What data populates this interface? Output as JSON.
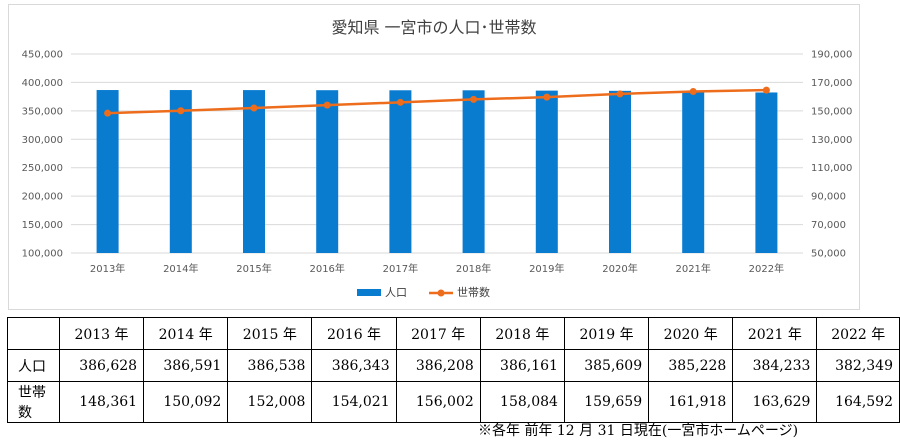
{
  "chart_data": {
    "type": "bar+line",
    "title": "愛知県 一宮市の人口･世帯数",
    "categories": [
      "2013年",
      "2014年",
      "2015年",
      "2016年",
      "2017年",
      "2018年",
      "2019年",
      "2020年",
      "2021年",
      "2022年"
    ],
    "series": [
      {
        "name": "人口",
        "type": "bar",
        "axis": "left",
        "color": "#0a7cd0",
        "values": [
          386628,
          386591,
          386538,
          386343,
          386208,
          386161,
          385609,
          385228,
          384233,
          382349
        ]
      },
      {
        "name": "世帯数",
        "type": "line",
        "axis": "right",
        "color": "#ed6d1c",
        "values": [
          148361,
          150092,
          152008,
          154021,
          156002,
          158084,
          159659,
          161918,
          163629,
          164592
        ]
      }
    ],
    "y_left": {
      "min": 100000,
      "max": 450000,
      "step": 50000,
      "ticks": [
        "100,000",
        "150,000",
        "200,000",
        "250,000",
        "300,000",
        "350,000",
        "400,000",
        "450,000"
      ]
    },
    "y_right": {
      "min": 50000,
      "max": 190000,
      "step": 20000,
      "ticks": [
        "50,000",
        "70,000",
        "90,000",
        "110,000",
        "130,000",
        "150,000",
        "170,000",
        "190,000"
      ]
    },
    "grid": true,
    "legend_position": "bottom"
  },
  "table": {
    "years": [
      "2013 年",
      "2014 年",
      "2015 年",
      "2016 年",
      "2017 年",
      "2018 年",
      "2019 年",
      "2020 年",
      "2021 年",
      "2022 年"
    ],
    "rows": [
      {
        "label": "人口",
        "values": [
          "386,628",
          "386,591",
          "386,538",
          "386,343",
          "386,208",
          "386,161",
          "385,609",
          "385,228",
          "384,233",
          "382,349"
        ]
      },
      {
        "label": "世帯数",
        "values": [
          "148,361",
          "150,092",
          "152,008",
          "154,021",
          "156,002",
          "158,084",
          "159,659",
          "161,918",
          "163,629",
          "164,592"
        ]
      }
    ]
  },
  "footnote": "※各年 前年 12 月 31 日現在(一宮市ホームページ)"
}
